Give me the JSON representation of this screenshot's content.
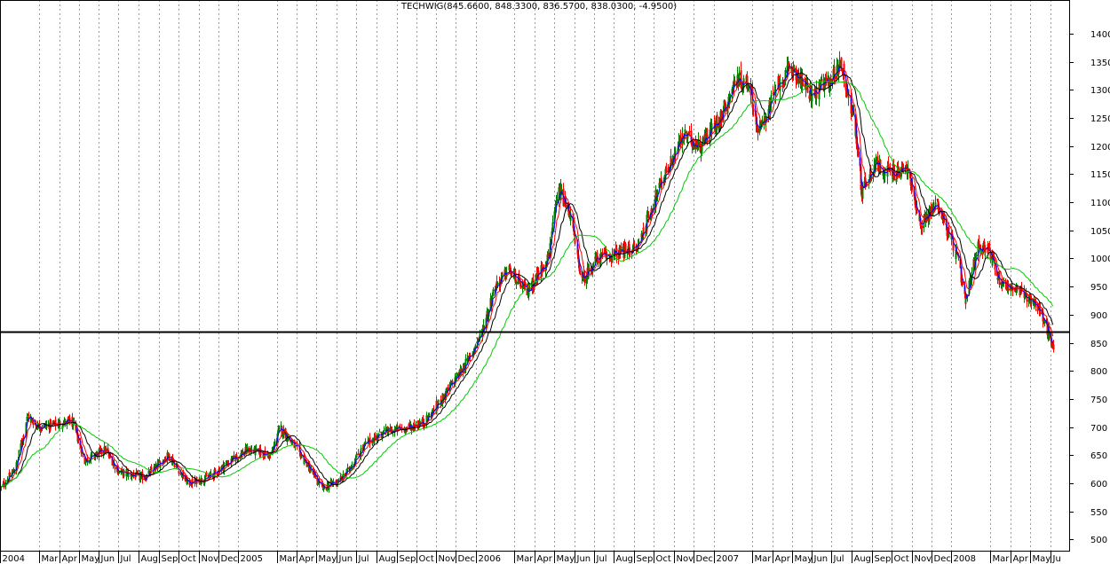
{
  "chart_data": {
    "type": "line",
    "title": "TECHWIG(845.6600, 848.3300, 836.5700, 838.0300, -4.9500)",
    "xlabel": "",
    "ylabel": "",
    "ylim": [
      480,
      1460
    ],
    "y_ticks": [
      500,
      550,
      600,
      650,
      700,
      750,
      800,
      850,
      900,
      950,
      1000,
      1050,
      1100,
      1150,
      1200,
      1250,
      1300,
      1350,
      1400
    ],
    "x_range": [
      "2004-01-01",
      "2008-06-30"
    ],
    "x_ticks": [
      {
        "date": "2004-01-01",
        "label": "2004"
      },
      {
        "date": "2004-03-01",
        "label": "Mar"
      },
      {
        "date": "2004-04-01",
        "label": "Apr"
      },
      {
        "date": "2004-05-01",
        "label": "May"
      },
      {
        "date": "2004-06-01",
        "label": "Jun"
      },
      {
        "date": "2004-07-01",
        "label": "Jul"
      },
      {
        "date": "2004-08-01",
        "label": "Aug"
      },
      {
        "date": "2004-09-01",
        "label": "Sep"
      },
      {
        "date": "2004-10-01",
        "label": "Oct"
      },
      {
        "date": "2004-11-01",
        "label": "Nov"
      },
      {
        "date": "2004-12-01",
        "label": "Dec"
      },
      {
        "date": "2005-01-01",
        "label": "2005"
      },
      {
        "date": "2005-03-01",
        "label": "Mar"
      },
      {
        "date": "2005-04-01",
        "label": "Apr"
      },
      {
        "date": "2005-05-01",
        "label": "May"
      },
      {
        "date": "2005-06-01",
        "label": "Jun"
      },
      {
        "date": "2005-07-01",
        "label": "Jul"
      },
      {
        "date": "2005-08-01",
        "label": "Aug"
      },
      {
        "date": "2005-09-01",
        "label": "Sep"
      },
      {
        "date": "2005-10-01",
        "label": "Oct"
      },
      {
        "date": "2005-11-01",
        "label": "Nov"
      },
      {
        "date": "2005-12-01",
        "label": "Dec"
      },
      {
        "date": "2006-01-01",
        "label": "2006"
      },
      {
        "date": "2006-03-01",
        "label": "Mar"
      },
      {
        "date": "2006-04-01",
        "label": "Apr"
      },
      {
        "date": "2006-05-01",
        "label": "May"
      },
      {
        "date": "2006-06-01",
        "label": "Jun"
      },
      {
        "date": "2006-07-01",
        "label": "Jul"
      },
      {
        "date": "2006-08-01",
        "label": "Aug"
      },
      {
        "date": "2006-09-01",
        "label": "Sep"
      },
      {
        "date": "2006-10-01",
        "label": "Oct"
      },
      {
        "date": "2006-11-01",
        "label": "Nov"
      },
      {
        "date": "2006-12-01",
        "label": "Dec"
      },
      {
        "date": "2007-01-01",
        "label": "2007"
      },
      {
        "date": "2007-03-01",
        "label": "Mar"
      },
      {
        "date": "2007-04-01",
        "label": "Apr"
      },
      {
        "date": "2007-05-01",
        "label": "May"
      },
      {
        "date": "2007-06-01",
        "label": "Jun"
      },
      {
        "date": "2007-07-01",
        "label": "Jul"
      },
      {
        "date": "2007-08-01",
        "label": "Aug"
      },
      {
        "date": "2007-09-01",
        "label": "Sep"
      },
      {
        "date": "2007-10-01",
        "label": "Oct"
      },
      {
        "date": "2007-11-01",
        "label": "Nov"
      },
      {
        "date": "2007-12-01",
        "label": "Dec"
      },
      {
        "date": "2008-01-01",
        "label": "2008"
      },
      {
        "date": "2008-03-01",
        "label": "Mar"
      },
      {
        "date": "2008-04-01",
        "label": "Apr"
      },
      {
        "date": "2008-05-01",
        "label": "May"
      },
      {
        "date": "2008-06-01",
        "label": "Ju"
      }
    ],
    "price_anchors": [
      {
        "date": "2004-01-01",
        "value": 590
      },
      {
        "date": "2004-01-25",
        "value": 628
      },
      {
        "date": "2004-02-12",
        "value": 720
      },
      {
        "date": "2004-02-28",
        "value": 700
      },
      {
        "date": "2004-04-20",
        "value": 710
      },
      {
        "date": "2004-05-10",
        "value": 640
      },
      {
        "date": "2004-06-10",
        "value": 660
      },
      {
        "date": "2004-07-01",
        "value": 620
      },
      {
        "date": "2004-08-10",
        "value": 610
      },
      {
        "date": "2004-09-15",
        "value": 650
      },
      {
        "date": "2004-10-15",
        "value": 600
      },
      {
        "date": "2004-11-15",
        "value": 610
      },
      {
        "date": "2004-12-20",
        "value": 640
      },
      {
        "date": "2005-01-15",
        "value": 660
      },
      {
        "date": "2005-02-20",
        "value": 650
      },
      {
        "date": "2005-03-05",
        "value": 700
      },
      {
        "date": "2005-04-01",
        "value": 660
      },
      {
        "date": "2005-05-10",
        "value": 590
      },
      {
        "date": "2005-06-10",
        "value": 610
      },
      {
        "date": "2005-07-15",
        "value": 670
      },
      {
        "date": "2005-08-10",
        "value": 690
      },
      {
        "date": "2005-09-20",
        "value": 700
      },
      {
        "date": "2005-10-15",
        "value": 710
      },
      {
        "date": "2005-11-15",
        "value": 760
      },
      {
        "date": "2005-12-20",
        "value": 820
      },
      {
        "date": "2006-01-10",
        "value": 870
      },
      {
        "date": "2006-01-30",
        "value": 950
      },
      {
        "date": "2006-02-20",
        "value": 980
      },
      {
        "date": "2006-03-20",
        "value": 940
      },
      {
        "date": "2006-04-20",
        "value": 1000
      },
      {
        "date": "2006-05-08",
        "value": 1120
      },
      {
        "date": "2006-05-25",
        "value": 1080
      },
      {
        "date": "2006-06-12",
        "value": 960
      },
      {
        "date": "2006-07-05",
        "value": 1000
      },
      {
        "date": "2006-08-10",
        "value": 1010
      },
      {
        "date": "2006-09-05",
        "value": 1020
      },
      {
        "date": "2006-10-10",
        "value": 1130
      },
      {
        "date": "2006-11-15",
        "value": 1220
      },
      {
        "date": "2006-12-10",
        "value": 1200
      },
      {
        "date": "2007-01-10",
        "value": 1250
      },
      {
        "date": "2007-02-05",
        "value": 1320
      },
      {
        "date": "2007-02-25",
        "value": 1310
      },
      {
        "date": "2007-03-10",
        "value": 1220
      },
      {
        "date": "2007-04-10",
        "value": 1310
      },
      {
        "date": "2007-05-01",
        "value": 1340
      },
      {
        "date": "2007-06-01",
        "value": 1290
      },
      {
        "date": "2007-07-01",
        "value": 1320
      },
      {
        "date": "2007-07-15",
        "value": 1350
      },
      {
        "date": "2007-08-05",
        "value": 1240
      },
      {
        "date": "2007-08-16",
        "value": 1120
      },
      {
        "date": "2007-09-05",
        "value": 1170
      },
      {
        "date": "2007-10-01",
        "value": 1150
      },
      {
        "date": "2007-10-25",
        "value": 1160
      },
      {
        "date": "2007-11-15",
        "value": 1060
      },
      {
        "date": "2007-12-10",
        "value": 1100
      },
      {
        "date": "2008-01-10",
        "value": 1000
      },
      {
        "date": "2008-01-22",
        "value": 920
      },
      {
        "date": "2008-02-10",
        "value": 1020
      },
      {
        "date": "2008-02-25",
        "value": 1020
      },
      {
        "date": "2008-03-15",
        "value": 960
      },
      {
        "date": "2008-04-15",
        "value": 940
      },
      {
        "date": "2008-05-10",
        "value": 920
      },
      {
        "date": "2008-05-25",
        "value": 880
      },
      {
        "date": "2008-06-05",
        "value": 838
      }
    ],
    "moving_averages": [
      {
        "color": "#0000ff",
        "period": 5
      },
      {
        "color": "#ff0000",
        "period": 10
      },
      {
        "color": "#000000",
        "period": 20
      },
      {
        "color": "#00cc00",
        "period": 50
      }
    ],
    "horizontal_line": {
      "value": 870,
      "color": "#000000"
    },
    "candle_colors": {
      "up": "#008000",
      "down": "#ff0000"
    },
    "grid": "vertical-dotted",
    "legend": "none"
  }
}
